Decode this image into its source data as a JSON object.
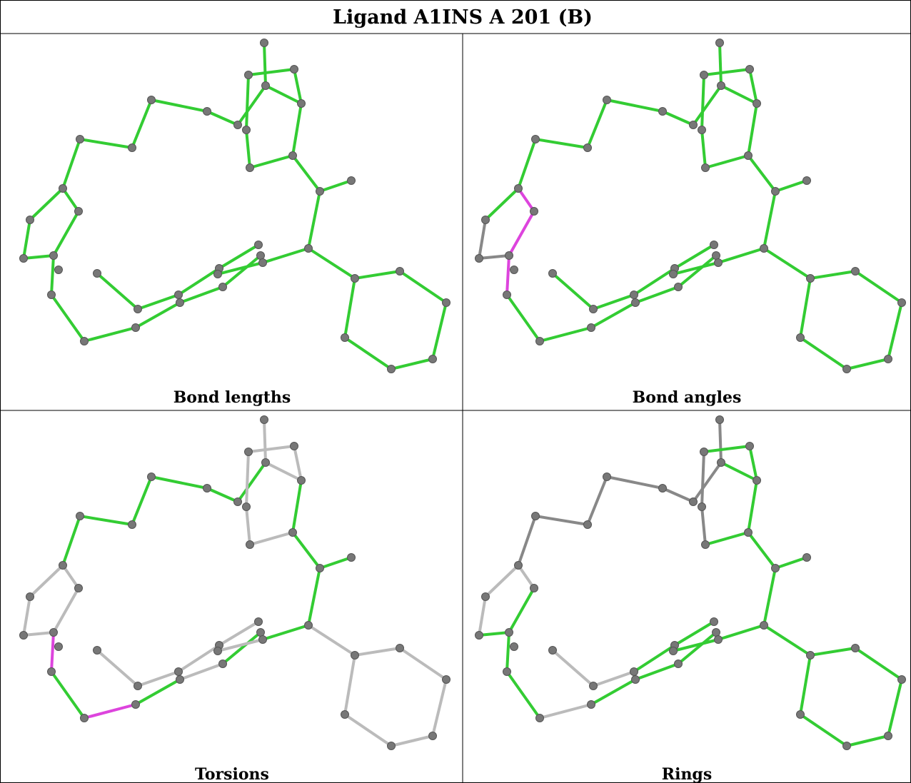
{
  "title": "Ligand A1INS A 201 (B)",
  "panels": [
    {
      "caption": "Bond lengths"
    },
    {
      "caption": "Bond angles"
    },
    {
      "caption": "Torsions"
    },
    {
      "caption": "Rings"
    }
  ]
}
